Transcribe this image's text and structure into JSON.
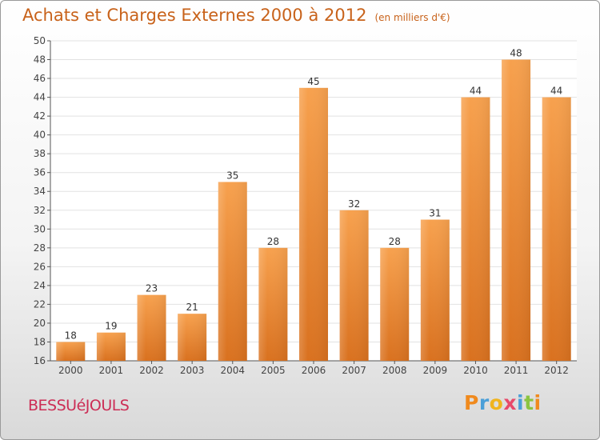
{
  "chart_data": {
    "type": "bar",
    "title": "Achats et Charges Externes 2000 à 2012",
    "subtitle": "(en milliers d'€)",
    "categories": [
      "2000",
      "2001",
      "2002",
      "2003",
      "2004",
      "2005",
      "2006",
      "2007",
      "2008",
      "2009",
      "2010",
      "2011",
      "2012"
    ],
    "values": [
      18,
      19,
      23,
      21,
      35,
      28,
      45,
      32,
      28,
      31,
      44,
      48,
      44
    ],
    "ylim": [
      16,
      50
    ],
    "yticks": [
      16,
      18,
      20,
      22,
      24,
      26,
      28,
      30,
      32,
      34,
      36,
      38,
      40,
      42,
      44,
      46,
      48,
      50
    ],
    "grid": true,
    "bar_color_top": "#f7a14e",
    "bar_color_bottom": "#d9711f"
  },
  "footer": {
    "city": "BESSUéJOULS",
    "brand": "Proxiti"
  },
  "colors": {
    "title": "#c8621a",
    "city": "#cc2d55",
    "brand": [
      "#f08a1e",
      "#4a9fd8",
      "#f0b41e",
      "#e84a6a",
      "#4a9fd8",
      "#8ac440",
      "#f08a1e"
    ]
  }
}
